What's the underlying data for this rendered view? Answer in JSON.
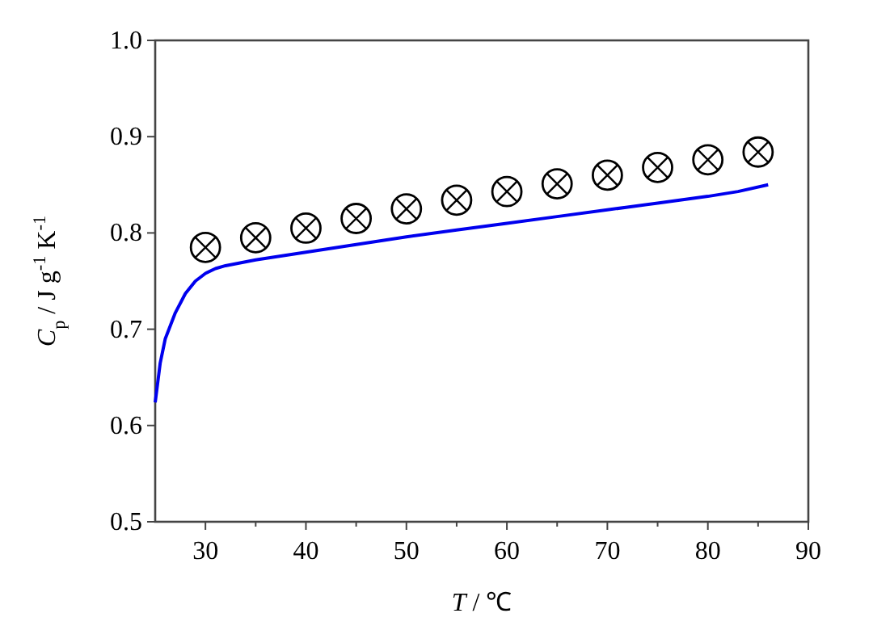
{
  "chart_data": {
    "type": "scatter",
    "xlabel": "T / ℃",
    "ylabel": "C$_{p}$ / J g$^{-1}$ K$^{-1}$",
    "xlim": [
      25,
      90
    ],
    "ylim": [
      0.5,
      1.0
    ],
    "xticks": [
      30,
      {
        "value": 35,
        "label": null
      },
      40,
      {
        "value": 45,
        "label": null
      },
      50,
      {
        "value": 55,
        "label": null
      },
      60,
      {
        "value": 65,
        "label": null
      },
      70,
      {
        "value": 75,
        "label": null
      },
      80,
      {
        "value": 85,
        "label": null
      },
      90
    ],
    "yticks": [
      0.5,
      0.6,
      0.7,
      0.8,
      0.9,
      {
        "value": 1.0,
        "label": "1.0"
      }
    ],
    "grid": false,
    "series": [
      {
        "type": "line",
        "color": "#0000ee",
        "marker": "none",
        "line_style": "solid",
        "x": [
          25,
          25.5,
          26,
          27,
          28,
          29,
          30,
          31,
          32,
          35,
          40,
          45,
          50,
          55,
          60,
          65,
          70,
          75,
          80,
          83,
          86
        ],
        "values": [
          0.624,
          0.665,
          0.69,
          0.717,
          0.737,
          0.75,
          0.758,
          0.763,
          0.766,
          0.772,
          0.78,
          0.788,
          0.796,
          0.803,
          0.81,
          0.817,
          0.824,
          0.831,
          0.838,
          0.843,
          0.85
        ]
      },
      {
        "color": "#000000",
        "marker": "cross",
        "x": [
          30,
          35,
          40,
          45,
          50,
          55,
          60,
          65,
          70,
          75,
          80,
          85
        ],
        "values": [
          0.785,
          0.795,
          0.805,
          0.815,
          0.825,
          0.834,
          0.843,
          0.851,
          0.86,
          0.868,
          0.876,
          0.884
        ]
      }
    ]
  }
}
